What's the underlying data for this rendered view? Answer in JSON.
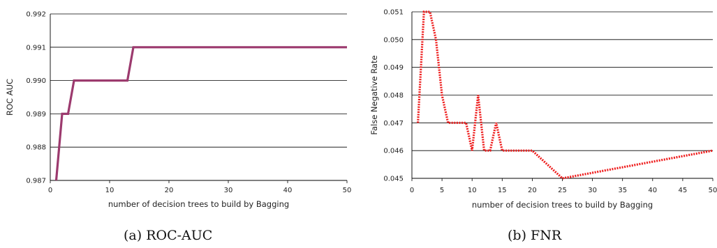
{
  "chart_data": [
    {
      "type": "line",
      "caption": "(a) ROC-AUC",
      "xlabel": "number of decision trees to build by Bagging",
      "ylabel": "ROC AUC",
      "xlim": [
        0,
        50
      ],
      "ylim": [
        0.987,
        0.992
      ],
      "xticks": [
        0,
        10,
        20,
        30,
        40,
        50
      ],
      "yticks": [
        0.987,
        0.988,
        0.989,
        0.99,
        0.991,
        0.992
      ],
      "ytick_labels": [
        "0.987",
        "0.988",
        "0.989",
        "0.990",
        "0.991",
        "0.992"
      ],
      "grid": "horizontal",
      "series": [
        {
          "color": "#9c3a6e",
          "style": "solid",
          "x": [
            1,
            2,
            3,
            4,
            5,
            6,
            7,
            8,
            9,
            10,
            11,
            12,
            13,
            14,
            15,
            20,
            25,
            30,
            35,
            40,
            45,
            50
          ],
          "values": [
            0.987,
            0.989,
            0.989,
            0.99,
            0.99,
            0.99,
            0.99,
            0.99,
            0.99,
            0.99,
            0.99,
            0.99,
            0.99,
            0.991,
            0.991,
            0.991,
            0.991,
            0.991,
            0.991,
            0.991,
            0.991,
            0.991
          ]
        }
      ]
    },
    {
      "type": "line",
      "caption": "(b) FNR",
      "xlabel": "number of decision trees to build by Bagging",
      "ylabel": "False Negative Rate",
      "xlim": [
        0,
        50
      ],
      "ylim": [
        0.045,
        0.051
      ],
      "xticks": [
        0,
        5,
        10,
        15,
        20,
        25,
        30,
        35,
        40,
        45,
        50
      ],
      "yticks": [
        0.045,
        0.046,
        0.047,
        0.048,
        0.049,
        0.05,
        0.051
      ],
      "ytick_labels": [
        "0.045",
        "0.046",
        "0.047",
        "0.048",
        "0.049",
        "0.050",
        "0.051"
      ],
      "grid": "horizontal",
      "series": [
        {
          "color": "#ee1c1c",
          "style": "dotted",
          "x": [
            1,
            2,
            3,
            4,
            5,
            6,
            7,
            8,
            9,
            10,
            11,
            12,
            13,
            14,
            15,
            20,
            25,
            50
          ],
          "values": [
            0.047,
            0.051,
            0.051,
            0.05,
            0.048,
            0.047,
            0.047,
            0.047,
            0.047,
            0.046,
            0.048,
            0.046,
            0.046,
            0.047,
            0.046,
            0.046,
            0.045,
            0.046
          ]
        }
      ]
    }
  ]
}
